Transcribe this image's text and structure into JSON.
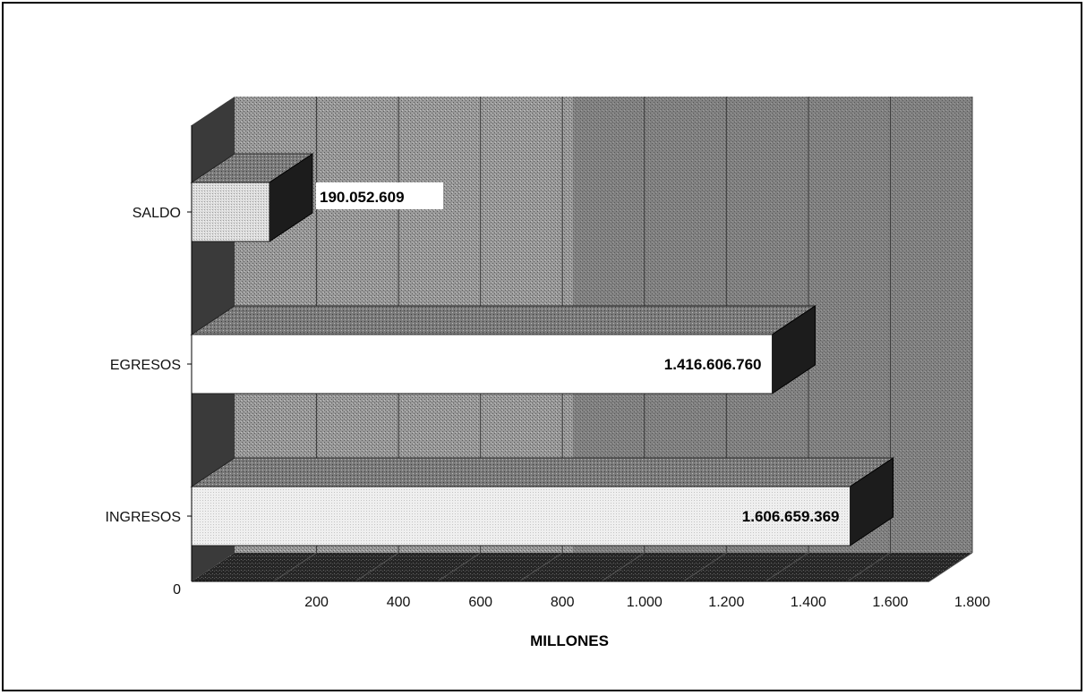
{
  "chart_data": {
    "type": "bar",
    "orientation": "horizontal",
    "three_d": true,
    "categories": [
      "INGRESOS",
      "EGRESOS",
      "SALDO"
    ],
    "values": [
      1606659369,
      1416606760,
      190052609
    ],
    "data_labels": [
      "1.606.659.369",
      "1.416.606.760",
      "190.052.609"
    ],
    "xlabel": "MILLONES",
    "xlim": [
      0,
      1800
    ],
    "x_ticks": [
      "0",
      "200",
      "400",
      "600",
      "800",
      "1.000",
      "1.200",
      "1.400",
      "1.600",
      "1.800"
    ],
    "x_tick_values": [
      0,
      200,
      400,
      600,
      800,
      1000,
      1200,
      1400,
      1600,
      1800
    ],
    "value_scale": 1000000,
    "grid": true,
    "legend": "none",
    "colors": {
      "ingresos_face": "#ededed",
      "egresos_face": "#ffffff",
      "saldo_face": "#d6d6d6",
      "bar_top": "#8a8a8a",
      "bar_side": "#1c1c1c",
      "wall": "#8c8c8c",
      "floor": "#2a2a2a",
      "gridline": "#3a3a3a"
    }
  }
}
